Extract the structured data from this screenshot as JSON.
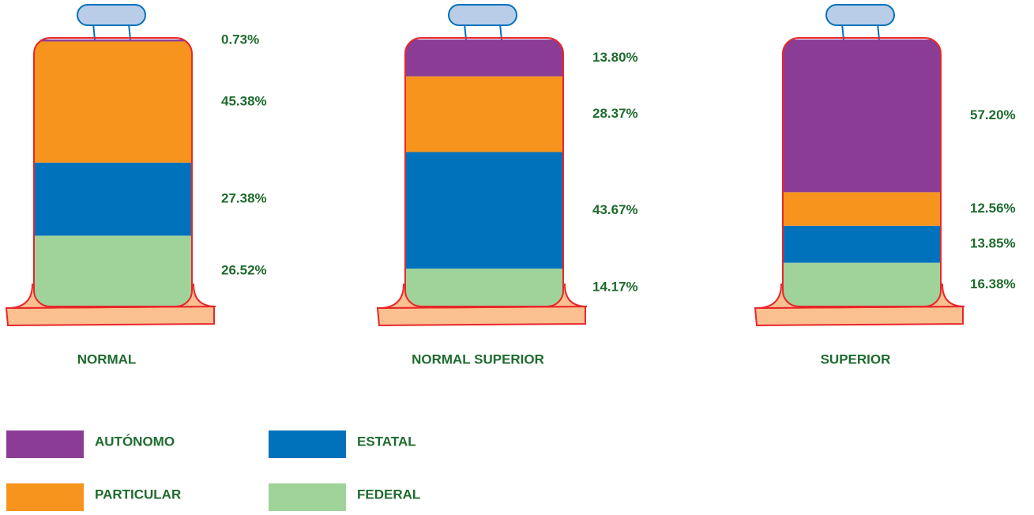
{
  "chart_data": {
    "type": "stacked-bar",
    "categories": [
      "NORMAL",
      "NORMAL SUPERIOR",
      "SUPERIOR"
    ],
    "series": [
      {
        "name": "FEDERAL",
        "color": "#9fd39a",
        "values": [
          26.52,
          14.17,
          16.38
        ],
        "value_labels": [
          "26.52%",
          "14.17%",
          "16.38%"
        ]
      },
      {
        "name": "ESTATAL",
        "color": "#0072bc",
        "values": [
          27.38,
          43.67,
          13.85
        ],
        "value_labels": [
          "27.38%",
          "43.67%",
          "13.85%"
        ]
      },
      {
        "name": "PARTICULAR",
        "color": "#f7941d",
        "values": [
          45.38,
          28.37,
          12.56
        ],
        "value_labels": [
          "45.38%",
          "28.37%",
          "12.56%"
        ]
      },
      {
        "name": "AUTÓNOMO",
        "color": "#8b3d96",
        "values": [
          0.73,
          13.8,
          57.2
        ],
        "value_labels": [
          "0.73%",
          "13.80%",
          "57.20%"
        ]
      }
    ]
  }
}
